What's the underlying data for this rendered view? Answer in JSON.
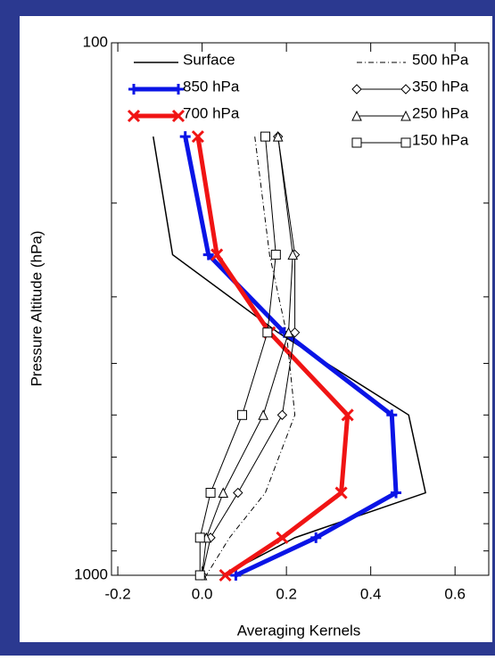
{
  "chart_data": {
    "type": "line",
    "x_label": "Averaging Kernels",
    "y_label": "Pressure Altitude (hPa)",
    "y": [
      150,
      250,
      350,
      500,
      700,
      850,
      1000
    ],
    "series": [
      {
        "name": "Surface",
        "color": "#000000",
        "width": 1.5,
        "marker": "none",
        "linestyle": "solid",
        "values": [
          -0.116,
          -0.07,
          0.18,
          0.49,
          0.53,
          0.22,
          0.05
        ]
      },
      {
        "name": "850 hPa",
        "color": "#0a14e6",
        "width": 5,
        "marker": "plus",
        "linestyle": "solid",
        "values": [
          -0.04,
          0.015,
          0.195,
          0.45,
          0.46,
          0.27,
          0.08
        ]
      },
      {
        "name": "700 hPa",
        "color": "#f01414",
        "width": 5,
        "marker": "x",
        "linestyle": "solid",
        "values": [
          -0.01,
          0.035,
          0.16,
          0.345,
          0.33,
          0.19,
          0.055
        ]
      },
      {
        "name": "500 hPa",
        "color": "#000000",
        "width": 1,
        "marker": "none",
        "linestyle": "dashdot",
        "values": [
          0.125,
          0.16,
          0.2,
          0.22,
          0.15,
          0.065,
          0.01
        ]
      },
      {
        "name": "350 hPa",
        "color": "#000000",
        "width": 1,
        "marker": "diamond",
        "linestyle": "solid",
        "values": [
          0.18,
          0.22,
          0.22,
          0.19,
          0.085,
          0.02,
          0.0
        ]
      },
      {
        "name": "250 hPa",
        "color": "#000000",
        "width": 1,
        "marker": "triangle",
        "linestyle": "solid",
        "values": [
          0.18,
          0.215,
          0.205,
          0.145,
          0.05,
          0.01,
          0.0
        ]
      },
      {
        "name": "150 hPa",
        "color": "#000000",
        "width": 1,
        "marker": "square",
        "linestyle": "solid",
        "values": [
          0.15,
          0.175,
          0.155,
          0.095,
          0.02,
          -0.005,
          -0.005
        ]
      }
    ],
    "xlim": [
      -0.215,
      0.68
    ],
    "xticks": [
      -0.2,
      {
        "value": 0,
        "label": "0.0"
      },
      0.2,
      0.4,
      0.6
    ],
    "ylim": [
      100,
      1000
    ],
    "yticks": [
      100,
      1000
    ],
    "yminorticks": [
      200,
      300,
      400,
      500,
      600,
      700,
      800,
      900
    ],
    "ylog": true,
    "yinverted": true,
    "grid": false
  }
}
